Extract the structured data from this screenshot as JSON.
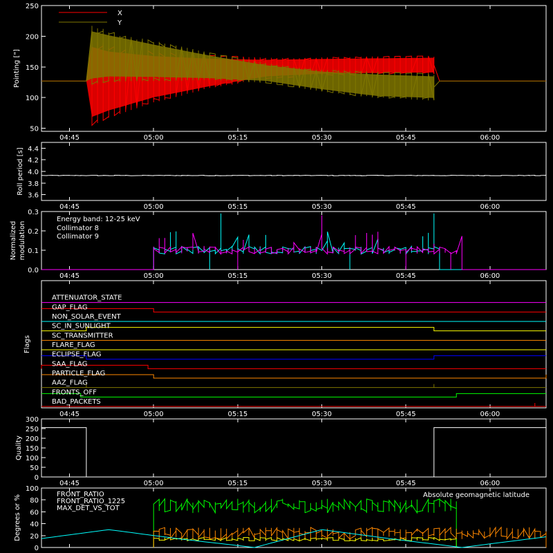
{
  "time_ticks": [
    "04:45",
    "05:00",
    "05:15",
    "05:30",
    "05:45",
    "06:00"
  ],
  "chart_data": [
    {
      "id": "pointing",
      "type": "line",
      "ylabel": "Pointing [\"]",
      "ylim": [
        45,
        250
      ],
      "yticks": [
        50,
        100,
        150,
        200,
        250
      ],
      "x_range": [
        "04:40",
        "06:10"
      ],
      "legend": [
        {
          "label": "X",
          "color": "#ff0000"
        },
        {
          "label": "Y",
          "color": "#807700"
        }
      ],
      "series": [
        {
          "name": "X",
          "color": "#ff0000",
          "x": [
            "04:40",
            "04:48",
            "04:48",
            "04:52",
            "05:00",
            "05:10",
            "05:20",
            "05:30",
            "05:40",
            "05:50",
            "05:50",
            "06:10"
          ],
          "y_center": [
            127,
            127,
            125,
            127,
            134,
            141,
            148,
            151,
            152,
            153,
            127,
            127
          ],
          "y_half_amplitude": [
            0,
            0,
            75,
            60,
            42,
            28,
            17,
            15,
            15,
            15,
            0,
            0
          ]
        },
        {
          "name": "Y",
          "color": "#807700",
          "x": [
            "04:40",
            "04:48",
            "04:48",
            "04:52",
            "05:00",
            "05:10",
            "05:20",
            "05:30",
            "05:40",
            "05:50",
            "05:50",
            "06:10"
          ],
          "y_center": [
            127,
            127,
            170,
            168,
            160,
            150,
            140,
            128,
            120,
            117,
            127,
            127
          ],
          "y_half_amplitude": [
            0,
            0,
            50,
            42,
            33,
            23,
            16,
            18,
            22,
            22,
            0,
            0
          ]
        }
      ]
    },
    {
      "id": "roll",
      "type": "line",
      "ylabel": "Roll period [s]",
      "ylim": [
        3.5,
        4.5
      ],
      "yticks": [
        3.6,
        3.8,
        4.0,
        4.2,
        4.4
      ],
      "x_range": [
        "04:40",
        "06:10"
      ],
      "series": [
        {
          "name": "",
          "color": "#ffffff",
          "x": [
            "04:40",
            "06:10"
          ],
          "y": [
            3.93,
            3.93
          ]
        }
      ]
    },
    {
      "id": "modulation",
      "type": "line",
      "ylabel": "Normalized modulation",
      "ylim": [
        0,
        0.3
      ],
      "yticks": [
        0.0,
        0.1,
        0.2,
        0.3
      ],
      "x_range": [
        "04:40",
        "06:10"
      ],
      "annotation": "Energy band: 12-25 keV",
      "legend": [
        {
          "label": "Collimator 8",
          "color": "#00ffff"
        },
        {
          "label": "Collimator 9",
          "color": "#ff00ff"
        }
      ],
      "series": [
        {
          "name": "Collimator 8",
          "color": "#00ffff",
          "x": [
            "05:00",
            "05:51"
          ],
          "y_level": 0.1,
          "y_noise": 0.04,
          "spikes": [
            [
              "05:10",
              0.0
            ],
            [
              "05:12",
              0.29
            ],
            [
              "05:35",
              0.0
            ],
            [
              "05:50",
              0.29
            ]
          ]
        },
        {
          "name": "Collimator 9",
          "color": "#ff00ff",
          "x": [
            "05:00",
            "05:55"
          ],
          "y_level": 0.1,
          "y_noise": 0.04,
          "spikes": [
            [
              "05:15",
              0.0
            ],
            [
              "05:30",
              0.28
            ],
            [
              "05:45",
              0.0
            ],
            [
              "05:53",
              0.0
            ]
          ]
        }
      ]
    },
    {
      "id": "flags",
      "type": "line",
      "ylabel": "Flags",
      "x_range": [
        "04:40",
        "06:10"
      ],
      "flags": [
        {
          "name": "ATTENUATOR_STATE",
          "color": "#ff00ff",
          "transitions": []
        },
        {
          "name": "GAP_FLAG",
          "color": "#ff0000",
          "transitions": [
            [
              "05:00",
              -1
            ]
          ]
        },
        {
          "name": "NON_SOLAR_EVENT",
          "color": "#00ffff",
          "transitions": []
        },
        {
          "name": "SC_IN_SUNLIGHT",
          "color": "#ffff00",
          "transitions": [
            [
              "04:48",
              1
            ],
            [
              "05:50",
              -1
            ]
          ]
        },
        {
          "name": "SC_TRANSMITTER",
          "color": "#ff8800",
          "transitions": []
        },
        {
          "name": "FLARE_FLAG",
          "color": "#ffff00",
          "transitions": []
        },
        {
          "name": "ECLIPSE_FLAG",
          "color": "#0000ff",
          "transitions": [
            [
              "04:48",
              -1
            ],
            [
              "05:50",
              1
            ]
          ]
        },
        {
          "name": "SAA_FLAG",
          "color": "#ff0000",
          "transitions": [
            [
              "04:40",
              1
            ],
            [
              "04:59",
              -1
            ]
          ]
        },
        {
          "name": "PARTICLE_FLAG",
          "color": "#ff8800",
          "transitions": [
            [
              "05:00",
              -1
            ],
            [
              "06:10",
              1
            ]
          ]
        },
        {
          "name": "AAZ_FLAG",
          "color": "#807700",
          "transitions": [
            [
              "04:48",
              1
            ],
            [
              "04:48",
              -1
            ],
            [
              "05:50",
              1
            ],
            [
              "05:50",
              -1
            ]
          ]
        },
        {
          "name": "FRONTS_OFF",
          "color": "#00ff00",
          "transitions": [
            [
              "04:47",
              -1
            ],
            [
              "05:54",
              1
            ]
          ]
        },
        {
          "name": "BAD_PACKETS",
          "color": "#ff0000",
          "transitions": [
            [
              "06:08",
              1
            ],
            [
              "06:08",
              -1
            ]
          ]
        }
      ]
    },
    {
      "id": "quality",
      "type": "line",
      "ylabel": "Quality",
      "ylim": [
        0,
        300
      ],
      "yticks": [
        0,
        50,
        100,
        150,
        200,
        250,
        300
      ],
      "x_range": [
        "04:40",
        "06:10"
      ],
      "series": [
        {
          "name": "",
          "color": "#ffffff",
          "x": [
            "04:40",
            "04:48",
            "04:48",
            "05:50",
            "05:50",
            "06:10"
          ],
          "y": [
            255,
            255,
            0,
            0,
            255,
            255
          ]
        }
      ]
    },
    {
      "id": "ratios",
      "type": "line",
      "ylabel": "Degrees or %",
      "ylim": [
        0,
        100
      ],
      "yticks": [
        0,
        20,
        40,
        60,
        80,
        100
      ],
      "x_range": [
        "04:40",
        "06:10"
      ],
      "legend": [
        {
          "label": "FRONT_RATIO",
          "color": "#ffff00"
        },
        {
          "label": "FRONT_RATIO_1225",
          "color": "#00ff00"
        },
        {
          "label": "MAX_DET_VS_TOT",
          "color": "#ff8800"
        }
      ],
      "annotation": "Absolute geomagnetic latitude",
      "annotation_color": "#00ffff",
      "series": [
        {
          "name": "FRONT_RATIO",
          "color": "#ffff00",
          "x": [
            "05:00",
            "05:54"
          ],
          "y_level": 14,
          "y_noise": 3
        },
        {
          "name": "FRONT_RATIO_1225",
          "color": "#00ff00",
          "x": [
            "05:00",
            "05:54"
          ],
          "y_level": 70,
          "y_noise": 12
        },
        {
          "name": "MAX_DET_VS_TOT",
          "color": "#ff8800",
          "x": [
            "05:00",
            "06:10"
          ],
          "y_level": 24,
          "y_noise": 10
        },
        {
          "name": "Absolute geomagnetic latitude",
          "color": "#00ffff",
          "x": [
            "04:40",
            "04:52",
            "05:05",
            "05:18",
            "05:30",
            "05:42",
            "05:55",
            "06:10"
          ],
          "y": [
            15,
            30,
            14,
            0,
            30,
            15,
            0,
            18
          ]
        }
      ]
    }
  ]
}
